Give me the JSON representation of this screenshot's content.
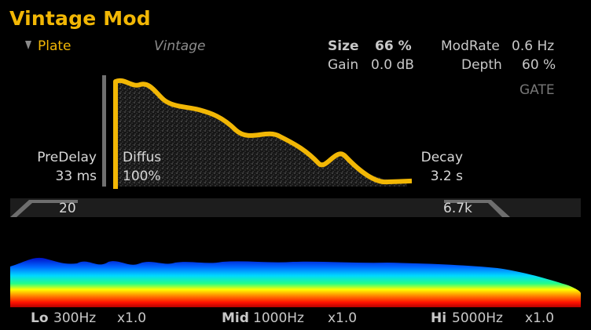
{
  "title": "Vintage Mod",
  "preset": {
    "label": "Plate",
    "icon": "dropdown-triangle-icon"
  },
  "mode": "Vintage",
  "params": {
    "size_label": "Size",
    "size_value": "66 %",
    "gain_label": "Gain",
    "gain_value": "0.0 dB",
    "modrate_label": "ModRate",
    "modrate_value": "0.6 Hz",
    "depth_label": "Depth",
    "depth_value": "60 %",
    "gate_label": "GATE"
  },
  "envelope": {
    "predelay_label": "PreDelay",
    "predelay_value": "33 ms",
    "diffus_label": "Diffus",
    "diffus_value": "100%",
    "decay_label": "Decay",
    "decay_value": "3.2 s"
  },
  "filter": {
    "low_value": "20",
    "high_value": "6.7k"
  },
  "eq": {
    "lo_label": "Lo",
    "lo_freq": "300Hz",
    "lo_mult": "x1.0",
    "mid_label": "Mid",
    "mid_freq": "1000Hz",
    "mid_mult": "x1.0",
    "hi_label": "Hi",
    "hi_freq": "5000Hz",
    "hi_mult": "x1.0"
  },
  "colors": {
    "accent": "#f2b705",
    "background": "#000000",
    "panel": "#1d1d1d"
  }
}
